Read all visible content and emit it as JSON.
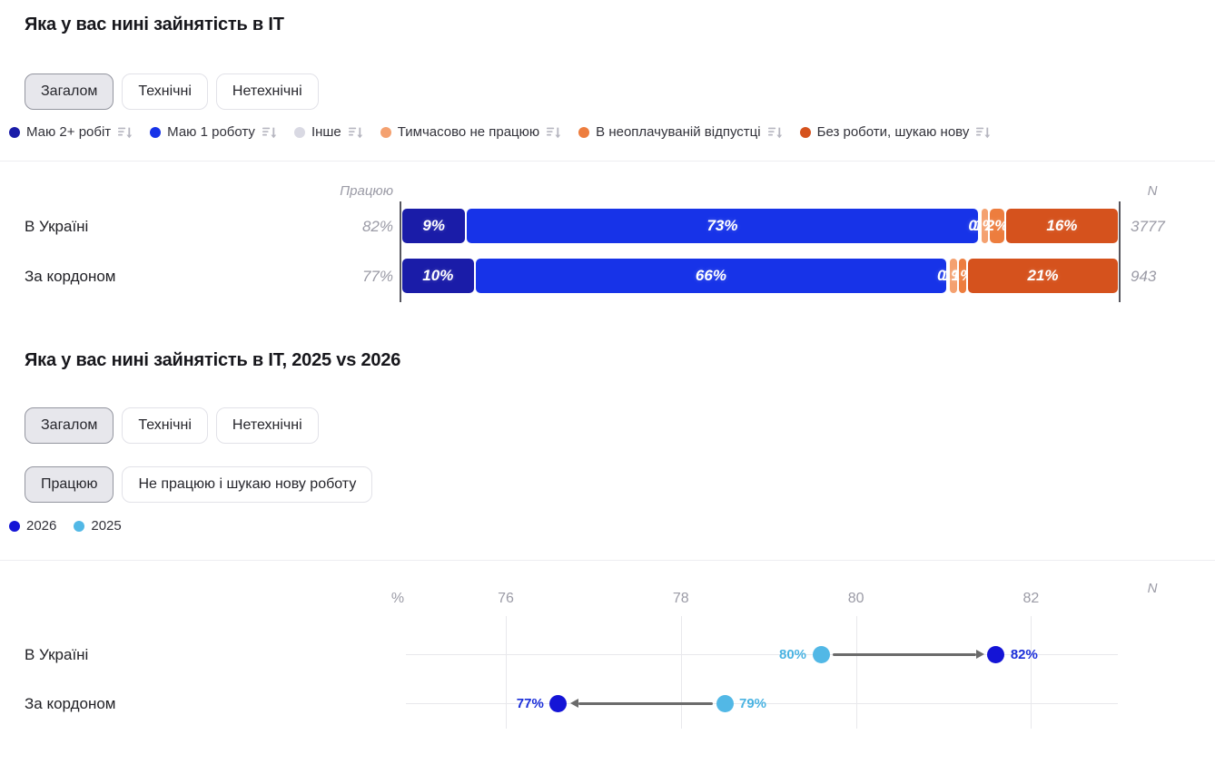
{
  "ui": {
    "chart1": {
      "tabs": [
        {
          "label": "Загалом",
          "selected": true
        },
        {
          "label": "Технічні",
          "selected": false
        },
        {
          "label": "Нетехнічні",
          "selected": false
        }
      ]
    },
    "chart2": {
      "tabs": [
        {
          "label": "Загалом",
          "selected": true
        },
        {
          "label": "Технічні",
          "selected": false
        },
        {
          "label": "Нетехнічні",
          "selected": false
        }
      ],
      "metric_tabs": [
        {
          "label": "Працюю",
          "selected": true
        },
        {
          "label": "Не працюю і шукаю нову роботу",
          "selected": false
        }
      ]
    }
  },
  "chart_data": [
    {
      "type": "bar",
      "variant": "horizontal-stacked",
      "title": "Яка у вас нині зайнятість в IT",
      "categories": [
        "В Україні",
        "За кордоном"
      ],
      "series": [
        {
          "name": "Маю 2+ робіт",
          "color": "#1A1CA8",
          "values": [
            9,
            10
          ]
        },
        {
          "name": "Маю 1 роботу",
          "color": "#1733E8",
          "values": [
            73,
            66
          ]
        },
        {
          "name": "Інше",
          "color": "#D9D9E3",
          "values": [
            0,
            0
          ]
        },
        {
          "name": "Тимчасово не працюю",
          "color": "#F4A170",
          "values": [
            1,
            1
          ]
        },
        {
          "name": "В неоплачуваній відпустці",
          "color": "#ED7D3E",
          "values": [
            2,
            1
          ]
        },
        {
          "name": "Без роботи, шукаю нову",
          "color": "#D5521D",
          "values": [
            16,
            21
          ]
        }
      ],
      "value_suffix": "%",
      "totals_header": "Працюю",
      "totals": [
        "82%",
        "77%"
      ],
      "n_header": "N",
      "n_values": [
        "3777",
        "943"
      ],
      "legend_sortable": true
    },
    {
      "type": "scatter",
      "variant": "dumbbell",
      "title": "Яка у вас нині зайнятість в IT, 2025 vs 2026",
      "categories": [
        "В Україні",
        "За кордоном"
      ],
      "xlabel": "%",
      "xticks": [
        "76",
        "78",
        "80",
        "82"
      ],
      "xlim": [
        75,
        83
      ],
      "grid": true,
      "n_header": "N",
      "series": [
        {
          "name": "2026",
          "color": "#1414D6",
          "label_color": "#1B2FD9",
          "points": [
            {
              "x": 81.6,
              "label": "82%",
              "label_side": "right"
            },
            {
              "x": 76.6,
              "label": "77%",
              "label_side": "left"
            }
          ]
        },
        {
          "name": "2025",
          "color": "#52B8E6",
          "label_color": "#4AB3E2",
          "points": [
            {
              "x": 79.6,
              "label": "80%",
              "label_side": "left"
            },
            {
              "x": 78.5,
              "label": "79%",
              "label_side": "right"
            }
          ]
        }
      ],
      "arrows": [
        {
          "row": 0,
          "from": 79.6,
          "to": 81.6,
          "color": "#6B6B6B"
        },
        {
          "row": 1,
          "from": 78.5,
          "to": 76.6,
          "color": "#6B6B6B"
        }
      ]
    }
  ]
}
